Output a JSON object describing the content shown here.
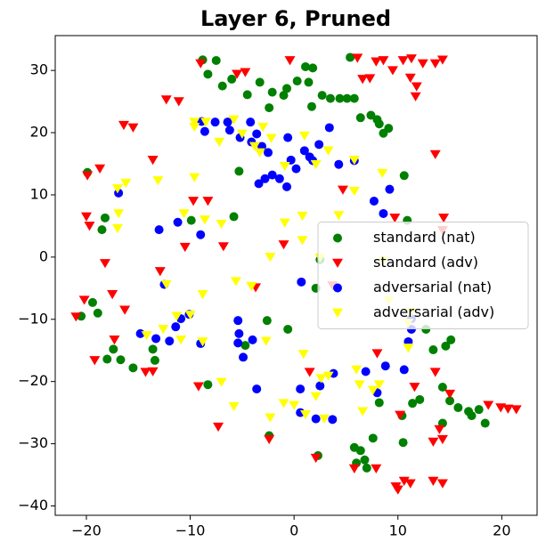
{
  "chart_data": {
    "type": "scatter",
    "title": "Layer 6, Pruned",
    "xlim": [
      -23.0,
      23.4
    ],
    "ylim": [
      -41.5,
      35.6
    ],
    "xticks": [
      {
        "value": -20,
        "label": "−20"
      },
      {
        "value": -10,
        "label": "−10"
      },
      0,
      10,
      20
    ],
    "yticks": [
      {
        "value": -40,
        "label": "−40"
      },
      {
        "value": -30,
        "label": "−30"
      },
      {
        "value": -20,
        "label": "−20"
      },
      {
        "value": -10,
        "label": "−10"
      },
      0,
      10,
      20,
      30
    ],
    "legend_loc": "center right",
    "series": [
      {
        "name": "standard (nat)",
        "color": "#008000",
        "marker": "circle",
        "x": [
          -8.8,
          -8.3,
          -6.9,
          -6.0,
          -4.5,
          -3.3,
          -2.4,
          -2.1,
          -1.0,
          -0.7,
          0.3,
          1.1,
          1.8,
          1.4,
          2.7,
          1.7,
          3.5,
          4.4,
          5.1,
          5.8,
          5.4,
          6.4,
          7.4,
          8.0,
          8.6,
          9.1,
          8.2,
          -19.9,
          -18.2,
          -18.5,
          -19.4,
          -18.9,
          -20.5,
          -17.4,
          -18.0,
          -16.7,
          -15.5,
          -13.6,
          -13.4,
          -5.3,
          -5.8,
          -9.9,
          -8.3,
          -4.7,
          -2.6,
          -0.6,
          -2.4,
          2.3,
          2.1,
          2.5,
          7.6,
          5.8,
          6.4,
          6.8,
          7.0,
          6.0,
          8.2,
          10.4,
          10.5,
          11.4,
          12.1,
          14.3,
          15.0,
          15.8,
          16.8,
          17.1,
          17.8,
          18.4,
          14.3,
          15.1,
          14.6,
          13.4,
          12.7,
          10.9,
          10.6,
          -7.5
        ],
        "y": [
          31.7,
          29.4,
          27.5,
          28.6,
          26.1,
          28.1,
          24.0,
          26.5,
          26.0,
          27.1,
          28.3,
          30.6,
          30.4,
          28.1,
          26.0,
          24.2,
          25.5,
          25.5,
          25.5,
          25.5,
          32.1,
          22.4,
          22.8,
          22.1,
          19.9,
          20.7,
          21.4,
          13.6,
          6.3,
          4.4,
          -7.3,
          -9.0,
          -9.5,
          -14.8,
          -16.4,
          -16.5,
          -17.8,
          -14.8,
          -16.6,
          13.8,
          6.5,
          5.9,
          -20.5,
          -14.2,
          -10.2,
          -11.6,
          -28.7,
          -31.9,
          -5.0,
          -0.4,
          -29.1,
          -30.6,
          -31.1,
          -32.6,
          -33.9,
          -33.1,
          -23.4,
          -25.5,
          -29.8,
          -23.5,
          -22.9,
          -20.9,
          -23.1,
          -24.2,
          -24.8,
          -25.5,
          -24.5,
          -26.7,
          -26.7,
          -13.3,
          -14.3,
          -14.9,
          -11.6,
          5.9,
          13.1,
          31.6
        ]
      },
      {
        "name": "standard (adv)",
        "color": "#ff0000",
        "marker": "triangle_down",
        "x": [
          -9.0,
          -5.5,
          -4.7,
          -0.4,
          -12.3,
          -11.1,
          -16.4,
          -15.5,
          -13.6,
          -19.9,
          -18.7,
          -20.0,
          -19.7,
          -18.2,
          -20.2,
          -21.0,
          -17.5,
          -16.3,
          -17.3,
          -19.2,
          -14.3,
          -13.6,
          -12.9,
          -10.5,
          -9.7,
          -8.3,
          -6.8,
          -3.7,
          -1.0,
          -9.2,
          -7.3,
          -2.4,
          2.1,
          4.7,
          3.7,
          6.1,
          7.9,
          8.6,
          6.6,
          7.3,
          9.5,
          10.5,
          11.2,
          11.8,
          11.7,
          12.4,
          13.6,
          14.3,
          11.3,
          14.3,
          14.4,
          13.6,
          9.7,
          13.6,
          11.6,
          15.0,
          18.7,
          19.9,
          20.6,
          21.4,
          10.2,
          14.0,
          13.4,
          14.3,
          13.4,
          14.3,
          10.6,
          11.2,
          9.8,
          10.0,
          7.9,
          5.8,
          8.0,
          1.5
        ],
        "y": [
          31.1,
          29.4,
          29.7,
          31.6,
          25.3,
          25.0,
          21.2,
          20.8,
          15.6,
          13.1,
          14.2,
          6.5,
          5.0,
          -1.0,
          -6.9,
          -9.6,
          -6.0,
          -8.5,
          -13.3,
          -16.6,
          -18.5,
          -18.4,
          -2.3,
          1.6,
          9.0,
          9.0,
          1.7,
          -4.9,
          2.0,
          -20.8,
          -27.3,
          -29.3,
          -32.3,
          10.8,
          -4.6,
          32.0,
          31.4,
          31.6,
          28.6,
          28.7,
          30.0,
          31.6,
          28.8,
          27.4,
          25.8,
          31.1,
          31.1,
          31.7,
          31.9,
          4.3,
          6.3,
          16.5,
          6.3,
          -18.5,
          -20.9,
          -22.0,
          -23.8,
          -24.2,
          -24.4,
          -24.5,
          -25.4,
          -27.7,
          -29.7,
          -29.3,
          -36.0,
          -36.4,
          -36.0,
          -36.4,
          -36.9,
          -37.4,
          -34.0,
          -34.0,
          -15.5,
          -18.5
        ]
      },
      {
        "name": "adversarial (nat)",
        "color": "#0000ff",
        "marker": "circle",
        "x": [
          -8.9,
          -8.6,
          -7.6,
          -6.4,
          -6.2,
          -5.2,
          -4.1,
          -3.6,
          -4.2,
          -3.1,
          -2.5,
          -3.4,
          -2.8,
          -2.1,
          -1.4,
          -0.7,
          -0.6,
          -0.3,
          0.2,
          1.0,
          1.5,
          1.8,
          2.4,
          3.4,
          4.3,
          5.8,
          7.7,
          8.6,
          9.2,
          -16.9,
          -13.0,
          -11.2,
          -9.0,
          -12.5,
          -14.8,
          -13.3,
          -12.0,
          -11.4,
          -10.9,
          -10.1,
          -9.0,
          -5.4,
          -5.3,
          -5.4,
          -4.9,
          -4.0,
          -3.6,
          0.6,
          0.6,
          2.1,
          3.7,
          3.8,
          2.5,
          6.9,
          8.0,
          8.8,
          11.3,
          11.3,
          11.0,
          10.6,
          0.7
        ],
        "y": [
          21.8,
          20.2,
          21.7,
          21.7,
          20.4,
          19.2,
          18.5,
          19.8,
          21.7,
          17.8,
          16.8,
          11.8,
          12.6,
          13.2,
          12.6,
          11.3,
          19.2,
          15.6,
          14.2,
          17.1,
          16.1,
          15.5,
          18.1,
          20.8,
          14.9,
          15.5,
          9.0,
          7.0,
          10.9,
          10.3,
          4.4,
          5.6,
          3.6,
          -4.4,
          -12.3,
          -13.1,
          -13.5,
          -11.2,
          -9.9,
          -9.2,
          -13.9,
          -10.2,
          -12.3,
          -13.8,
          -16.1,
          -13.3,
          -21.2,
          -21.2,
          -25.0,
          -26.0,
          -26.1,
          -18.7,
          -20.7,
          -18.4,
          -21.8,
          -17.5,
          -9.9,
          -11.6,
          -13.6,
          -18.1,
          -4.0
        ]
      },
      {
        "name": "adversarial (adv)",
        "color": "#ffff00",
        "marker": "triangle_down",
        "x": [
          -9.6,
          -9.6,
          -8.5,
          -7.2,
          -5.8,
          -5.0,
          -3.8,
          -3.0,
          -2.2,
          1.0,
          2.1,
          3.3,
          5.8,
          -3.3,
          -0.9,
          -17.0,
          -16.2,
          -16.9,
          -17.0,
          -13.1,
          -10.6,
          -9.6,
          -7.0,
          -8.6,
          -2.3,
          -0.9,
          0.8,
          0.8,
          2.5,
          4.3,
          -12.3,
          -8.8,
          -5.6,
          -4.1,
          -14.2,
          -12.6,
          -11.3,
          -10.0,
          -10.9,
          -8.8,
          -7.0,
          -5.8,
          -2.7,
          -2.3,
          -1.0,
          0.0,
          1.1,
          2.1,
          2.6,
          2.9,
          3.3,
          6.0,
          6.3,
          7.6,
          8.2,
          6.6,
          8.6,
          9.1,
          11.3,
          11.0,
          11.0,
          8.5,
          5.8,
          0.9
        ],
        "y": [
          21.7,
          20.9,
          21.7,
          18.5,
          22.1,
          19.8,
          17.8,
          20.9,
          19.1,
          19.5,
          14.9,
          17.1,
          15.6,
          16.8,
          14.6,
          11.0,
          11.9,
          7.0,
          4.6,
          12.3,
          7.0,
          12.8,
          5.3,
          6.0,
          0.0,
          5.5,
          6.6,
          2.7,
          -0.1,
          6.7,
          -4.4,
          -6.0,
          -3.9,
          -4.7,
          -12.6,
          -11.6,
          -9.5,
          -9.3,
          -13.3,
          -13.6,
          -20.1,
          -24.0,
          -13.5,
          -25.8,
          -23.5,
          -23.8,
          -25.3,
          -22.4,
          -19.5,
          -26.0,
          -19.1,
          -18.1,
          -20.5,
          -21.4,
          -20.5,
          -24.8,
          -0.6,
          -7.0,
          -8.8,
          -10.6,
          -14.6,
          13.5,
          10.6,
          -15.6
        ]
      }
    ]
  }
}
